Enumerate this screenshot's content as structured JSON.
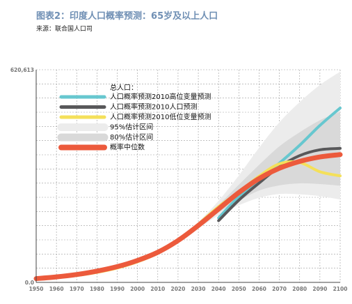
{
  "header": {
    "title": "图表2：印度人口概率预测：65岁及以上人口",
    "source": "来源：联合国人口司"
  },
  "chart_data": {
    "type": "line",
    "title": "图表2：印度人口概率预测：65岁及以上人口",
    "subtitle": "来源：联合国人口司",
    "xlabel": "",
    "ylabel": "",
    "x_ticks": [
      "1950",
      "1960",
      "1970",
      "1980",
      "1990",
      "2000",
      "2010",
      "2020",
      "2030",
      "2040",
      "2050",
      "2060",
      "2070",
      "2080",
      "2090",
      "2100"
    ],
    "y_ticks": [
      "0.0",
      "620,613"
    ],
    "xlim": [
      1950,
      2100
    ],
    "ylim": [
      0,
      620613
    ],
    "grid": true,
    "legend_position": "top-left",
    "legend_title": "总人口：",
    "x": [
      1950,
      1960,
      1970,
      1980,
      1990,
      2000,
      2010,
      2020,
      2030,
      2040,
      2050,
      2060,
      2070,
      2080,
      2090,
      2100
    ],
    "series": [
      {
        "name": "人口概率预测2010高位变量预测",
        "color": "#67c7cf",
        "x": [
          2040,
          2050,
          2060,
          2070,
          2080,
          2090,
          2100
        ],
        "values": [
          188000,
          250000,
          300000,
          348000,
          400000,
          458000,
          509000
        ]
      },
      {
        "name": "人口概率预测2010人口预测",
        "color": "#58585a",
        "x": [
          2040,
          2050,
          2060,
          2070,
          2080,
          2090,
          2100
        ],
        "values": [
          180000,
          240000,
          290000,
          337000,
          370000,
          387000,
          391000
        ]
      },
      {
        "name": "人口概率预测2010低位变量预测",
        "color": "#f4e05a",
        "values": [
          9000,
          14000,
          20000,
          29000,
          42000,
          60000,
          85000,
          120000,
          170000,
          221000,
          264000,
          310000,
          346000,
          350000,
          323000,
          311000
        ]
      },
      {
        "name": "概率中位数",
        "color": "#ec5a3c",
        "values": [
          11000,
          16000,
          23000,
          33000,
          46000,
          64000,
          88000,
          122000,
          166000,
          214000,
          262000,
          303000,
          333000,
          353000,
          366000,
          373000
        ]
      }
    ],
    "bands": [
      {
        "name": "95%估计区间",
        "color": "#ececec",
        "x": [
          2020,
          2030,
          2040,
          2050,
          2060,
          2070,
          2080,
          2090,
          2100
        ],
        "lower": [
          118000,
          158000,
          196000,
          225000,
          247000,
          258000,
          257000,
          252000,
          242000
        ],
        "upper": [
          126000,
          176000,
          238000,
          312000,
          393000,
          467000,
          526000,
          576000,
          615000
        ]
      },
      {
        "name": "80%估计区间",
        "color": "#d9d9d9",
        "x": [
          2020,
          2030,
          2040,
          2050,
          2060,
          2070,
          2080,
          2090,
          2100
        ],
        "lower": [
          120000,
          161000,
          204000,
          238000,
          268000,
          283000,
          289000,
          287000,
          282000
        ],
        "upper": [
          124000,
          170000,
          226000,
          285000,
          343000,
          397000,
          438000,
          473000,
          498000
        ]
      }
    ]
  }
}
